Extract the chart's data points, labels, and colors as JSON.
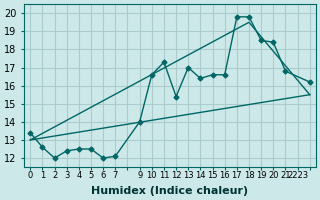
{
  "xlabel": "Humidex (Indice chaleur)",
  "ylabel": "",
  "bg_color": "#cce8e8",
  "grid_color": "#aacccc",
  "line_color": "#006666",
  "xlim": [
    -0.5,
    23.5
  ],
  "ylim": [
    11.5,
    20.5
  ],
  "yticks": [
    12,
    13,
    14,
    15,
    16,
    17,
    18,
    19,
    20
  ],
  "xtick_labels": [
    "0",
    "1",
    "2",
    "3",
    "4",
    "5",
    "6",
    "7",
    "",
    "9",
    "10",
    "11",
    "12",
    "13",
    "14",
    "15",
    "16",
    "17",
    "18",
    "19",
    "20",
    "21",
    "2223"
  ],
  "line1_x": [
    0,
    1,
    2,
    3,
    4,
    5,
    6,
    7,
    9,
    10,
    11,
    12,
    13,
    14,
    15,
    16,
    17,
    18,
    19,
    20,
    21,
    23
  ],
  "line1_y": [
    13.4,
    12.6,
    12.0,
    12.4,
    12.5,
    12.5,
    12.0,
    12.1,
    14.0,
    16.6,
    17.3,
    15.4,
    17.0,
    16.4,
    16.6,
    16.6,
    19.8,
    19.8,
    18.5,
    18.4,
    16.8,
    16.2
  ],
  "line2_x": [
    0,
    23
  ],
  "line2_y": [
    13.0,
    15.5
  ],
  "line3_x": [
    0,
    18,
    23
  ],
  "line3_y": [
    13.0,
    19.5,
    15.5
  ],
  "marker_size": 4,
  "font_size_label": 8,
  "font_size_tick": 7
}
